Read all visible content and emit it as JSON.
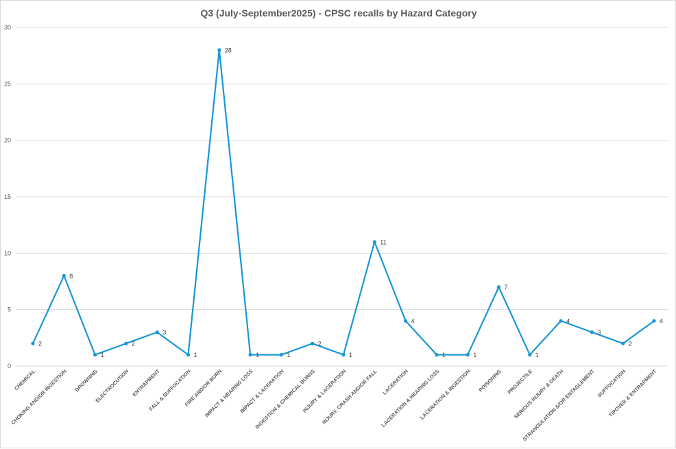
{
  "chart_data": {
    "type": "line",
    "title": "Q3 (July-September2025) - CPSC recalls by Hazard Category",
    "xlabel": "",
    "ylabel": "",
    "ylim": [
      0,
      30
    ],
    "yticks": [
      "0",
      "5",
      "10",
      "15",
      "20",
      "25",
      "30"
    ],
    "grid": true,
    "legend": "none",
    "color": "#1897D4",
    "categories": [
      "CHEMICAL",
      "CHOKING AND/OR INGESTION",
      "DROWNING",
      "ELECTROCUTION",
      "ENTRAPMENT",
      "FALL & SUFFOCATION",
      "FIRE AND/OR BURN",
      "IMPACT & HEARING LOSS",
      "IMPACT & LACERATION",
      "INGESTION & CHEMICAL BURNS",
      "INJURY & LACERATION",
      "INJURY, CRASH AND/OR FALL",
      "LACERATION",
      "LACERATION & HEARING LOSS",
      "LACERATION & INGESTION",
      "POISONING",
      "PROJECTILE",
      "SERIOUS INJURY & DEATH",
      "STRANGULATION &/OR ENTAGLEMENT",
      "SUFFOCATION",
      "TIPOVER & ENTRAPMENT"
    ],
    "values": [
      2,
      8,
      1,
      2,
      3,
      1,
      28,
      1,
      1,
      2,
      1,
      11,
      4,
      1,
      1,
      7,
      1,
      4,
      3,
      2,
      4
    ]
  }
}
